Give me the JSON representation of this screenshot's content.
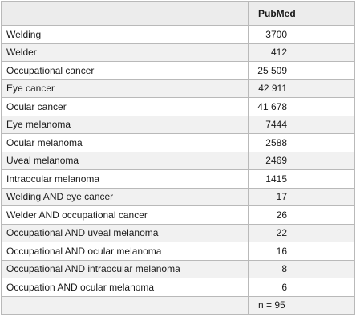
{
  "table": {
    "header": {
      "term": "",
      "count": "PubMed"
    },
    "rows": [
      {
        "term": "Welding",
        "count": "3700"
      },
      {
        "term": "Welder",
        "count": "412"
      },
      {
        "term": "Occupational cancer",
        "count": "25 509"
      },
      {
        "term": "Eye cancer",
        "count": "42 911"
      },
      {
        "term": "Ocular cancer",
        "count": "41 678"
      },
      {
        "term": "Eye melanoma",
        "count": "7444"
      },
      {
        "term": "Ocular melanoma",
        "count": "2588"
      },
      {
        "term": "Uveal melanoma",
        "count": "2469"
      },
      {
        "term": "Intraocular melanoma",
        "count": "1415"
      },
      {
        "term": "Welding AND eye cancer",
        "count": "17"
      },
      {
        "term": "Welder AND occupational cancer",
        "count": "26"
      },
      {
        "term": "Occupational AND uveal melanoma",
        "count": "22"
      },
      {
        "term": "Occupational AND ocular melanoma",
        "count": "16"
      },
      {
        "term": "Occupational AND intraocular melanoma",
        "count": "8"
      },
      {
        "term": "Occupation AND ocular melanoma",
        "count": "6"
      }
    ],
    "total": {
      "term": "",
      "count": "n = 95"
    }
  }
}
